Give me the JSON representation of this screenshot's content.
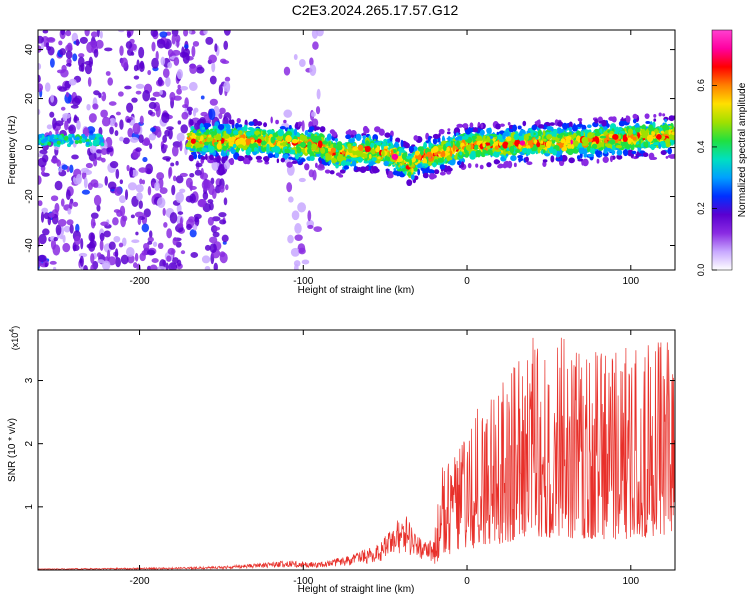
{
  "figure_title": "C2E3.2024.265.17.57.G12",
  "chart_data": [
    {
      "type": "heatmap",
      "xlabel": "Height of straight line (km)",
      "ylabel": "Frequency (Hz)",
      "xlim": [
        -262,
        127
      ],
      "ylim": [
        -50,
        48
      ],
      "x_ticks": [
        -200,
        -100,
        0,
        100
      ],
      "y_ticks": [
        -40,
        -20,
        0,
        20,
        40
      ],
      "colorbar": {
        "label": "Normalized spectral amplitude",
        "range": [
          0,
          0.78
        ],
        "ticks": [
          "0.0",
          "0.2",
          "0.4",
          "0.6"
        ],
        "ticks_values": [
          0,
          0.2,
          0.4,
          0.6
        ],
        "colors": [
          "#ffffff",
          "#c8a8ff",
          "#8a2be2",
          "#5a00d0",
          "#0030ff",
          "#00a0ff",
          "#00e0c0",
          "#20e040",
          "#a0e000",
          "#ffe000",
          "#ff8000",
          "#ff0000",
          "#ff00a0",
          "#ff40d0"
        ]
      },
      "ridge": {
        "x": [
          -262,
          -240,
          -200,
          -170,
          -150,
          -130,
          -110,
          -100,
          -90,
          -80,
          -70,
          -60,
          -50,
          -40,
          -35,
          -30,
          -20,
          -10,
          0,
          20,
          40,
          60,
          80,
          100,
          127
        ],
        "y": [
          4,
          3,
          2,
          3,
          3,
          3,
          2,
          1,
          1,
          -3,
          -2,
          -1,
          -2,
          -5,
          -8,
          -4,
          -3,
          -1,
          1,
          1,
          2,
          2,
          3,
          4,
          5
        ]
      }
    },
    {
      "type": "line",
      "xlabel": "Height of straight line (km)",
      "ylabel": "SNR (10 * v/v)",
      "y_multiplier": "(x10",
      "y_exponent": "4",
      "y_multiplier_close": ")",
      "xlim": [
        -262,
        127
      ],
      "ylim": [
        0,
        3.8
      ],
      "x_ticks": [
        -200,
        -100,
        0,
        100
      ],
      "y_ticks": [
        1,
        2,
        3
      ],
      "series": [
        {
          "color": "#e8302a",
          "envelope_x": [
            -262,
            -220,
            -180,
            -150,
            -130,
            -110,
            -90,
            -70,
            -55,
            -45,
            -38,
            -32,
            -25,
            -20,
            -15,
            -5,
            5,
            15,
            25,
            35,
            45,
            55,
            70,
            85,
            100,
            110,
            118,
            127
          ],
          "envelope_y": [
            0.02,
            0.03,
            0.04,
            0.06,
            0.1,
            0.15,
            0.12,
            0.25,
            0.4,
            0.7,
            0.95,
            0.6,
            0.45,
            0.5,
            1.5,
            1.8,
            2.3,
            2.6,
            2.9,
            3.2,
            3.5,
            3.4,
            3.3,
            3.2,
            3.3,
            3.4,
            3.8,
            3.0
          ]
        }
      ]
    }
  ]
}
